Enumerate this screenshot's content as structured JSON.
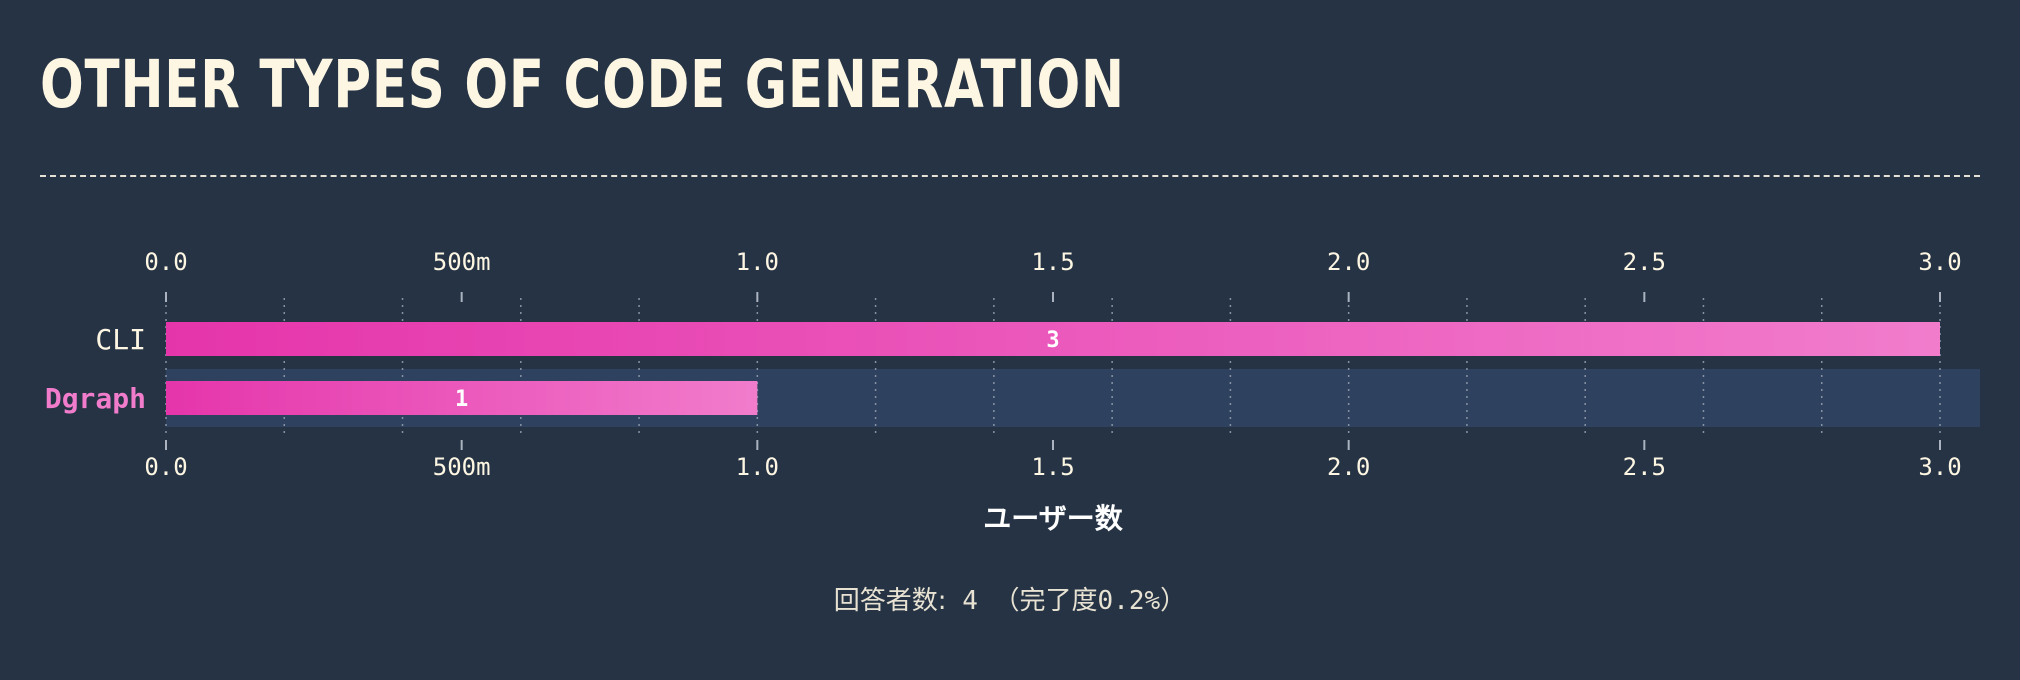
{
  "title": "OTHER TYPES OF CODE GENERATION",
  "footer": {
    "label": "回答者数:",
    "count": "4",
    "detail_open": "（完了度",
    "detail_value": "0.2%",
    "detail_close": "）"
  },
  "colors": {
    "background": "#253344",
    "bar_start": "#e535ab",
    "bar_end": "#f17ccc",
    "highlight_row": "#2e4260",
    "highlight_label": "#f17ccc",
    "text": "#fdf6e3"
  },
  "chart_data": {
    "type": "bar",
    "orientation": "horizontal",
    "categories": [
      "CLI",
      "Dgraph"
    ],
    "values": [
      3,
      1
    ],
    "value_labels": [
      "3",
      "1"
    ],
    "highlighted_category": "Dgraph",
    "xlabel": "ユーザー数",
    "xlim": [
      0,
      3
    ],
    "x_ticks": [
      0,
      0.5,
      1,
      1.5,
      2,
      2.5,
      3
    ],
    "x_tick_labels": [
      "0.0",
      "500m",
      "1.0",
      "1.5",
      "2.0",
      "2.5",
      "3.0"
    ],
    "axis_position": "top-and-bottom",
    "grid": true
  }
}
